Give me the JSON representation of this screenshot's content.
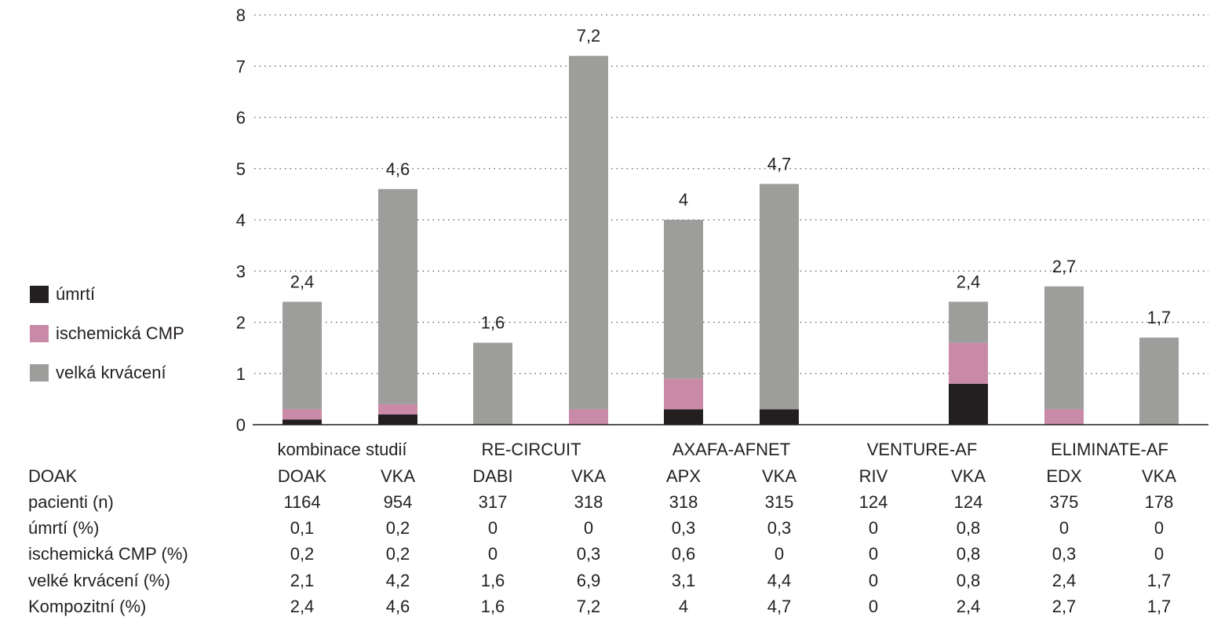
{
  "chart_data": {
    "type": "bar",
    "stacked": true,
    "ylim": [
      0,
      8
    ],
    "yticks": [
      "0",
      "1",
      "2",
      "3",
      "4",
      "5",
      "6",
      "7",
      "8"
    ],
    "grid": "dotted horizontal",
    "legend_position": "left",
    "groups": [
      "kombinace studií",
      "RE-CIRCUIT",
      "AXAFA-AFNET",
      "VENTURE-AF",
      "ELIMINATE-AF"
    ],
    "categories": [
      "DOAK",
      "VKA",
      "DABI",
      "VKA",
      "APX",
      "VKA",
      "RIV",
      "VKA",
      "EDX",
      "VKA"
    ],
    "series": [
      {
        "name": "úmrtí",
        "color": "#231f20",
        "values": [
          0.1,
          0.2,
          0,
          0,
          0.3,
          0.3,
          0,
          0.8,
          0,
          0
        ]
      },
      {
        "name": "ischemická CMP",
        "color": "#c98aa8",
        "values": [
          0.2,
          0.2,
          0,
          0.3,
          0.6,
          0,
          0,
          0.8,
          0.3,
          0
        ]
      },
      {
        "name": "velká krvácení",
        "color": "#9d9d9c",
        "values": [
          2.1,
          4.2,
          1.6,
          6.9,
          3.1,
          4.4,
          0,
          0.8,
          2.4,
          1.7
        ]
      }
    ],
    "totals": [
      2.4,
      4.6,
      1.6,
      7.2,
      4,
      4.7,
      0,
      2.4,
      2.7,
      1.7
    ],
    "total_labels": [
      "2,4",
      "4,6",
      "1,6",
      "7,2",
      "4",
      "4,7",
      "",
      "2,4",
      "2,7",
      "1,7"
    ],
    "table": {
      "rows": [
        {
          "label": "DOAK",
          "values": [
            "DOAK",
            "VKA",
            "DABI",
            "VKA",
            "APX",
            "VKA",
            "RIV",
            "VKA",
            "EDX",
            "VKA"
          ]
        },
        {
          "label": "pacienti (n)",
          "values": [
            "1164",
            "954",
            "317",
            "318",
            "318",
            "315",
            "124",
            "124",
            "375",
            "178"
          ]
        },
        {
          "label": "úmrtí (%)",
          "values": [
            "0,1",
            "0,2",
            "0",
            "0",
            "0,3",
            "0,3",
            "0",
            "0,8",
            "0",
            "0"
          ]
        },
        {
          "label": "ischemická CMP (%)",
          "values": [
            "0,2",
            "0,2",
            "0",
            "0,3",
            "0,6",
            "0",
            "0",
            "0,8",
            "0,3",
            "0"
          ]
        },
        {
          "label": "velké krvácení (%)",
          "values": [
            "2,1",
            "4,2",
            "1,6",
            "6,9",
            "3,1",
            "4,4",
            "0",
            "0,8",
            "2,4",
            "1,7"
          ]
        },
        {
          "label": "Kompozitní (%)",
          "values": [
            "2,4",
            "4,6",
            "1,6",
            "7,2",
            "4",
            "4,7",
            "0",
            "2,4",
            "2,7",
            "1,7"
          ]
        }
      ]
    }
  }
}
